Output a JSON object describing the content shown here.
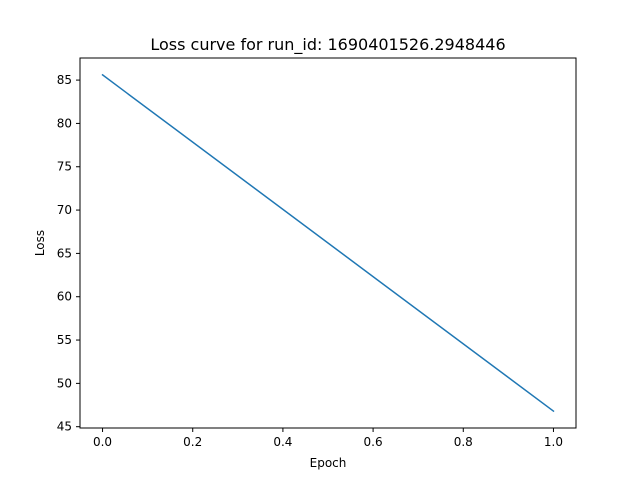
{
  "chart_data": {
    "type": "line",
    "title": "Loss curve for run_id: 1690401526.2948446",
    "xlabel": "Epoch",
    "ylabel": "Loss",
    "x": [
      0.0,
      1.0
    ],
    "series": [
      {
        "values": [
          85.6,
          46.8
        ],
        "color": "#1f77b4"
      }
    ],
    "xlim": [
      -0.05,
      1.05
    ],
    "ylim": [
      44.85,
      87.55
    ],
    "xticks": [
      0.0,
      0.2,
      0.4,
      0.6,
      0.8,
      1.0
    ],
    "xtick_labels": [
      "0.0",
      "0.2",
      "0.4",
      "0.6",
      "0.8",
      "1.0"
    ],
    "yticks": [
      45,
      50,
      55,
      60,
      65,
      70,
      75,
      80,
      85
    ],
    "ytick_labels": [
      "45",
      "50",
      "55",
      "60",
      "65",
      "70",
      "75",
      "80",
      "85"
    ],
    "grid": false,
    "legend": "none"
  }
}
